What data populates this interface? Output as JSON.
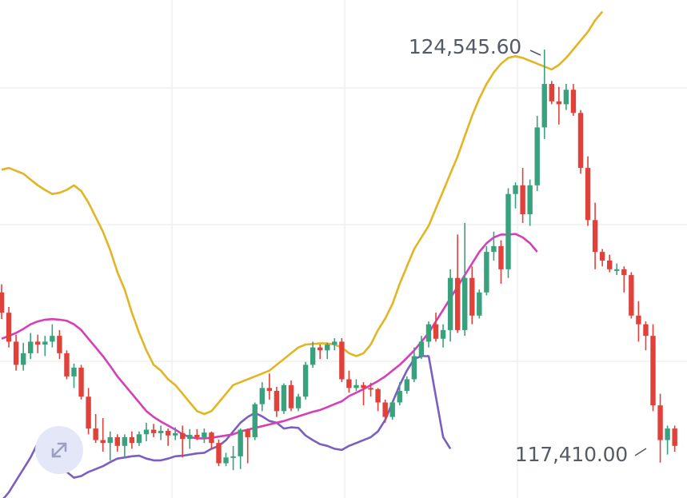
{
  "chart_data": {
    "type": "candlestick",
    "markers": {
      "high_label": "124,545.60",
      "low_label": "117,410.00"
    },
    "colors": {
      "up": "#3aa17e",
      "down": "#e0413a",
      "upper_band": "#e2b523",
      "middle_band": "#d63fb8",
      "lower_band": "#7a5fc0",
      "grid": "#ececec"
    },
    "ylim": [
      116800,
      125400
    ],
    "candles": [
      [
        120350,
        120490,
        119890,
        120000
      ],
      [
        120000,
        120100,
        119400,
        119500
      ],
      [
        119500,
        119620,
        119000,
        119100
      ],
      [
        119100,
        119480,
        119000,
        119300
      ],
      [
        119300,
        119650,
        119200,
        119500
      ],
      [
        119500,
        119620,
        119300,
        119450
      ],
      [
        119450,
        119600,
        119250,
        119500
      ],
      [
        119500,
        119800,
        119400,
        119600
      ],
      [
        119600,
        119700,
        119200,
        119300
      ],
      [
        119300,
        119350,
        118850,
        118900
      ],
      [
        118900,
        119120,
        118700,
        119050
      ],
      [
        119050,
        119100,
        118500,
        118550
      ],
      [
        118550,
        118700,
        117900,
        118000
      ],
      [
        118000,
        118250,
        117750,
        117800
      ],
      [
        117800,
        118180,
        117600,
        117750
      ],
      [
        117750,
        117950,
        117450,
        117850
      ],
      [
        117850,
        117900,
        117600,
        117700
      ],
      [
        117700,
        117900,
        117500,
        117850
      ],
      [
        117850,
        117950,
        117650,
        117750
      ],
      [
        117750,
        117950,
        117700,
        117900
      ],
      [
        117900,
        118100,
        117780,
        117980
      ],
      [
        117980,
        118080,
        117850,
        117920
      ],
      [
        117920,
        118050,
        117800,
        117960
      ],
      [
        117960,
        118000,
        117700,
        117880
      ],
      [
        117880,
        118020,
        117800,
        117920
      ],
      [
        117920,
        118050,
        117500,
        117820
      ],
      [
        117820,
        117990,
        117650,
        117890
      ],
      [
        117890,
        117990,
        117800,
        117850
      ],
      [
        117850,
        118000,
        117750,
        117930
      ],
      [
        117930,
        117950,
        117650,
        117750
      ],
      [
        117750,
        117810,
        117350,
        117400
      ],
      [
        117400,
        117580,
        117350,
        117500
      ],
      [
        117500,
        117700,
        117280,
        117520
      ],
      [
        117520,
        118000,
        117300,
        117980
      ],
      [
        117980,
        118000,
        117400,
        117850
      ],
      [
        117850,
        118450,
        117800,
        118420
      ],
      [
        118420,
        118800,
        118300,
        118700
      ],
      [
        118700,
        118950,
        118500,
        118650
      ],
      [
        118650,
        118720,
        118200,
        118300
      ],
      [
        118300,
        118780,
        118250,
        118750
      ],
      [
        118750,
        118830,
        118300,
        118350
      ],
      [
        118350,
        118600,
        118300,
        118550
      ],
      [
        118550,
        119150,
        118500,
        119100
      ],
      [
        119100,
        119500,
        119050,
        119400
      ],
      [
        119400,
        119450,
        119200,
        119350
      ],
      [
        119350,
        119480,
        119200,
        119450
      ],
      [
        119450,
        119560,
        119350,
        119500
      ],
      [
        119500,
        119560,
        118800,
        118850
      ],
      [
        118850,
        119000,
        118620,
        118700
      ],
      [
        118700,
        118850,
        118650,
        118750
      ],
      [
        118750,
        118800,
        118400,
        118700
      ],
      [
        118700,
        118790,
        118550,
        118680
      ],
      [
        118680,
        118700,
        118300,
        118450
      ],
      [
        118450,
        118500,
        118100,
        118200
      ],
      [
        118200,
        118480,
        118150,
        118450
      ],
      [
        118450,
        118800,
        118400,
        118650
      ],
      [
        118650,
        118900,
        118600,
        118850
      ],
      [
        118850,
        119400,
        118800,
        119250
      ],
      [
        119250,
        119600,
        119200,
        119500
      ],
      [
        119500,
        119850,
        119400,
        119800
      ],
      [
        119800,
        120000,
        119500,
        119550
      ],
      [
        119550,
        119800,
        119400,
        119700
      ],
      [
        119700,
        120750,
        119500,
        120600
      ],
      [
        120600,
        121350,
        119650,
        119700
      ],
      [
        119700,
        121550,
        119600,
        120600
      ],
      [
        120600,
        120800,
        119800,
        119950
      ],
      [
        119950,
        120400,
        119900,
        120350
      ],
      [
        120350,
        121150,
        120300,
        121050
      ],
      [
        121050,
        121400,
        120900,
        121150
      ],
      [
        121150,
        121250,
        120500,
        120750
      ],
      [
        120750,
        122150,
        120600,
        122050
      ],
      [
        122050,
        122250,
        121800,
        122200
      ],
      [
        122200,
        122500,
        121550,
        121700
      ],
      [
        121700,
        122300,
        121500,
        122200
      ],
      [
        122200,
        123400,
        122100,
        123200
      ],
      [
        123200,
        124545.6,
        123000,
        123950
      ],
      [
        123950,
        124000,
        123600,
        123650
      ],
      [
        123650,
        123900,
        123250,
        123600
      ],
      [
        123600,
        123950,
        123500,
        123850
      ],
      [
        123850,
        123950,
        123400,
        123450
      ],
      [
        123450,
        123500,
        122400,
        122500
      ],
      [
        122500,
        122700,
        121500,
        121600
      ],
      [
        121600,
        121900,
        120750,
        121050
      ],
      [
        121050,
        121100,
        120800,
        120900
      ],
      [
        120900,
        121000,
        120700,
        120750
      ],
      [
        120750,
        120850,
        120650,
        120750
      ],
      [
        120750,
        120800,
        120350,
        120650
      ],
      [
        120650,
        120700,
        119900,
        119950
      ],
      [
        119950,
        120200,
        119500,
        119800
      ],
      [
        119800,
        119850,
        119350,
        119600
      ],
      [
        119600,
        119800,
        118300,
        118400
      ],
      [
        118400,
        118600,
        117410,
        117800
      ],
      [
        117800,
        118050,
        117550,
        118000
      ],
      [
        118000,
        118050,
        117600,
        117700
      ]
    ],
    "upper_band": [
      122470,
      122500,
      122450,
      122400,
      122300,
      122200,
      122120,
      122050,
      122070,
      122120,
      122200,
      122100,
      121900,
      121650,
      121400,
      121080,
      120700,
      120400,
      120000,
      119650,
      119350,
      119100,
      119000,
      118850,
      118750,
      118600,
      118450,
      118300,
      118250,
      118300,
      118450,
      118600,
      118750,
      118800,
      118850,
      118900,
      118950,
      119000,
      119100,
      119200,
      119300,
      119400,
      119450,
      119460,
      119470,
      119470,
      119450,
      119400,
      119300,
      119250,
      119300,
      119450,
      119700,
      119900,
      120150,
      120500,
      120800,
      121100,
      121300,
      121500,
      121800,
      122100,
      122400,
      122700,
      123050,
      123400,
      123700,
      123950,
      124150,
      124300,
      124400,
      124430,
      124400,
      124350,
      124300,
      124250,
      124200,
      124280,
      124400,
      124550,
      124700,
      124850,
      125050,
      125200
    ],
    "middle_band": [
      119550,
      119600,
      119650,
      119720,
      119800,
      119850,
      119880,
      119890,
      119880,
      119860,
      119800,
      119700,
      119550,
      119400,
      119250,
      119080,
      118900,
      118750,
      118600,
      118450,
      118300,
      118200,
      118120,
      118050,
      117980,
      117900,
      117850,
      117830,
      117830,
      117840,
      117860,
      117880,
      117900,
      117950,
      117980,
      118010,
      118040,
      118070,
      118100,
      118130,
      118170,
      118210,
      118250,
      118290,
      118320,
      118370,
      118420,
      118470,
      118560,
      118620,
      118680,
      118750,
      118820,
      118900,
      119000,
      119100,
      119220,
      119350,
      119500,
      119650,
      119850,
      120050,
      120250,
      120450,
      120650,
      120850,
      121050,
      121200,
      121300,
      121350,
      121350,
      121360,
      121300,
      121200,
      121050
    ],
    "lower_band": [
      116750,
      116900,
      117100,
      117300,
      117500,
      117750,
      117850,
      117700,
      117450,
      117250,
      117150,
      117180,
      117250,
      117300,
      117350,
      117420,
      117480,
      117500,
      117520,
      117530,
      117480,
      117450,
      117450,
      117480,
      117520,
      117530,
      117550,
      117570,
      117580,
      117650,
      117700,
      117800,
      117950,
      118100,
      118200,
      118270,
      118210,
      118130,
      118100,
      118000,
      118020,
      118010,
      117880,
      117800,
      117730,
      117700,
      117650,
      117630,
      117700,
      117750,
      117800,
      117850,
      117950,
      118150,
      118450,
      118750,
      119000,
      119200,
      119250,
      119250,
      118550,
      117850,
      117650
    ]
  }
}
